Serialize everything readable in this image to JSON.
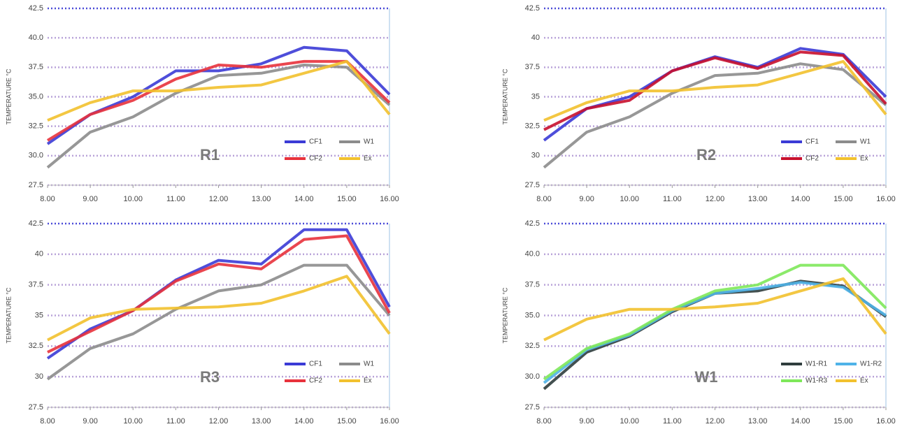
{
  "chart_data": [
    {
      "type": "line",
      "label": "R1",
      "ylabel": "TEMPERATURE °C",
      "legend": "lower right",
      "grid": true,
      "x": [
        8,
        9,
        10,
        11,
        12,
        13,
        14,
        15,
        16
      ],
      "xlim": [
        8,
        16
      ],
      "xticks": [
        {
          "value": 8,
          "label": "8.00"
        },
        {
          "value": 9,
          "label": "9.00"
        },
        {
          "value": 10,
          "label": "10.00"
        },
        {
          "value": 11,
          "label": "11.00"
        },
        {
          "value": 12,
          "label": "12.00"
        },
        {
          "value": 13,
          "label": "13.00"
        },
        {
          "value": 14,
          "label": "14.00"
        },
        {
          "value": 15,
          "label": "15.00"
        },
        {
          "value": 16,
          "label": "16.00"
        }
      ],
      "ylim": [
        27.5,
        42.5
      ],
      "yticks": [
        27.5,
        {
          "value": 30,
          "label": "30.0"
        },
        32.5,
        {
          "value": 35,
          "label": "35.0"
        },
        37.5,
        {
          "value": 40,
          "label": "40.0"
        },
        42.5
      ],
      "series": [
        {
          "name": "CF1",
          "color": "#3b3bd6",
          "values": [
            31.0,
            33.5,
            35.0,
            37.2,
            37.2,
            37.8,
            39.2,
            38.9,
            35.2
          ]
        },
        {
          "name": "W1",
          "color": "#8c8c8c",
          "values": [
            29.0,
            32.0,
            33.3,
            35.3,
            36.8,
            37.0,
            37.7,
            37.5,
            34.3
          ]
        },
        {
          "name": "CF2",
          "color": "#e8323c",
          "values": [
            31.3,
            33.5,
            34.7,
            36.5,
            37.7,
            37.5,
            38.0,
            38.0,
            34.5
          ]
        },
        {
          "name": "Ex",
          "color": "#f2c12e",
          "values": [
            33.0,
            34.5,
            35.5,
            35.5,
            35.8,
            36.0,
            37.0,
            38.0,
            33.5
          ]
        }
      ]
    },
    {
      "type": "line",
      "label": "R2",
      "ylabel": "TEMPERATURE °C",
      "legend": "lower right",
      "grid": true,
      "x": [
        8,
        9,
        10,
        11,
        12,
        13,
        14,
        15,
        16
      ],
      "xlim": [
        8,
        16
      ],
      "xticks": [
        {
          "value": 8,
          "label": "8.00"
        },
        {
          "value": 9,
          "label": "9.00"
        },
        {
          "value": 10,
          "label": "10.00"
        },
        {
          "value": 11,
          "label": "11.00"
        },
        {
          "value": 12,
          "label": "12.00"
        },
        {
          "value": 13,
          "label": "13.00"
        },
        {
          "value": 14,
          "label": "14.00"
        },
        {
          "value": 15,
          "label": "15.00"
        },
        {
          "value": 16,
          "label": "16.00"
        }
      ],
      "ylim": [
        27.5,
        42.5
      ],
      "yticks": [
        27.5,
        30,
        32.5,
        35,
        37.5,
        40,
        42.5
      ],
      "series": [
        {
          "name": "CF1",
          "color": "#3b3bd6",
          "values": [
            31.3,
            34.0,
            35.0,
            37.2,
            38.4,
            37.5,
            39.1,
            38.6,
            35.0
          ]
        },
        {
          "name": "W1",
          "color": "#8c8c8c",
          "values": [
            29.0,
            32.0,
            33.3,
            35.3,
            36.8,
            37.0,
            37.8,
            37.3,
            34.3
          ]
        },
        {
          "name": "CF2",
          "color": "#c8102e",
          "values": [
            32.2,
            34.0,
            34.7,
            37.2,
            38.3,
            37.4,
            38.8,
            38.5,
            34.4
          ]
        },
        {
          "name": "Ex",
          "color": "#f2c12e",
          "values": [
            33.0,
            34.5,
            35.5,
            35.5,
            35.8,
            36.0,
            37.0,
            38.0,
            33.5
          ]
        }
      ]
    },
    {
      "type": "line",
      "label": "R3",
      "ylabel": "TEMPERATURE °C",
      "legend": "lower right",
      "grid": true,
      "x": [
        8,
        9,
        10,
        11,
        12,
        13,
        14,
        15,
        16
      ],
      "xlim": [
        8,
        16
      ],
      "xticks": [
        {
          "value": 8,
          "label": "8.00"
        },
        {
          "value": 9,
          "label": "9.00"
        },
        {
          "value": 10,
          "label": "10.00"
        },
        {
          "value": 11,
          "label": "11.00"
        },
        {
          "value": 12,
          "label": "12.00"
        },
        {
          "value": 13,
          "label": "13.00"
        },
        {
          "value": 14,
          "label": "14.00"
        },
        {
          "value": 15,
          "label": "15.00"
        },
        {
          "value": 16,
          "label": "16.00"
        }
      ],
      "ylim": [
        27.5,
        42.5
      ],
      "yticks": [
        27.5,
        30,
        32.5,
        35,
        37.5,
        40,
        42.5
      ],
      "series": [
        {
          "name": "CF1",
          "color": "#3b3bd6",
          "values": [
            31.5,
            33.9,
            35.4,
            37.9,
            39.5,
            39.2,
            42.0,
            42.0,
            35.7
          ]
        },
        {
          "name": "W1",
          "color": "#8c8c8c",
          "values": [
            29.8,
            32.3,
            33.5,
            35.5,
            37.0,
            37.5,
            39.1,
            39.1,
            35.0
          ]
        },
        {
          "name": "CF2",
          "color": "#e8323c",
          "values": [
            32.0,
            33.7,
            35.4,
            37.8,
            39.2,
            38.8,
            41.2,
            41.5,
            35.2
          ]
        },
        {
          "name": "Ex",
          "color": "#f2c12e",
          "values": [
            33.0,
            34.8,
            35.5,
            35.6,
            35.7,
            36.0,
            37.0,
            38.2,
            33.5
          ]
        }
      ]
    },
    {
      "type": "line",
      "label": "W1",
      "ylabel": "TEMPERATURE °C",
      "legend": "lower right",
      "grid": true,
      "x": [
        8,
        9,
        10,
        11,
        12,
        13,
        14,
        15,
        16
      ],
      "xlim": [
        8,
        16
      ],
      "xticks": [
        {
          "value": 8,
          "label": "8.00"
        },
        {
          "value": 9,
          "label": "9.00"
        },
        {
          "value": 10,
          "label": "10.00"
        },
        {
          "value": 11,
          "label": "11.00"
        },
        {
          "value": 12,
          "label": "12.00"
        },
        {
          "value": 13,
          "label": "13.00"
        },
        {
          "value": 14,
          "label": "14.00"
        },
        {
          "value": 15,
          "label": "15.00"
        },
        {
          "value": 16,
          "label": "16.00"
        }
      ],
      "ylim": [
        27.5,
        42.5
      ],
      "yticks": [
        27.5,
        {
          "value": 30,
          "label": "30.0"
        },
        32.5,
        {
          "value": 35,
          "label": "35.0"
        },
        37.5,
        {
          "value": 40,
          "label": "40.0"
        },
        42.5
      ],
      "series": [
        {
          "name": "W1-R1",
          "color": "#2f3d3d",
          "values": [
            29.0,
            32.0,
            33.3,
            35.3,
            36.8,
            37.0,
            37.8,
            37.4,
            34.9
          ]
        },
        {
          "name": "W1-R2",
          "color": "#4fb3e8",
          "values": [
            29.5,
            32.2,
            33.4,
            35.4,
            36.8,
            37.2,
            37.7,
            37.3,
            35.0
          ]
        },
        {
          "name": "W1-R3",
          "color": "#7ee85a",
          "values": [
            29.8,
            32.3,
            33.5,
            35.5,
            37.0,
            37.5,
            39.1,
            39.1,
            35.6
          ]
        },
        {
          "name": "Ex",
          "color": "#f2c12e",
          "values": [
            33.0,
            34.7,
            35.5,
            35.5,
            35.7,
            36.0,
            37.0,
            38.0,
            33.5
          ]
        }
      ]
    }
  ]
}
